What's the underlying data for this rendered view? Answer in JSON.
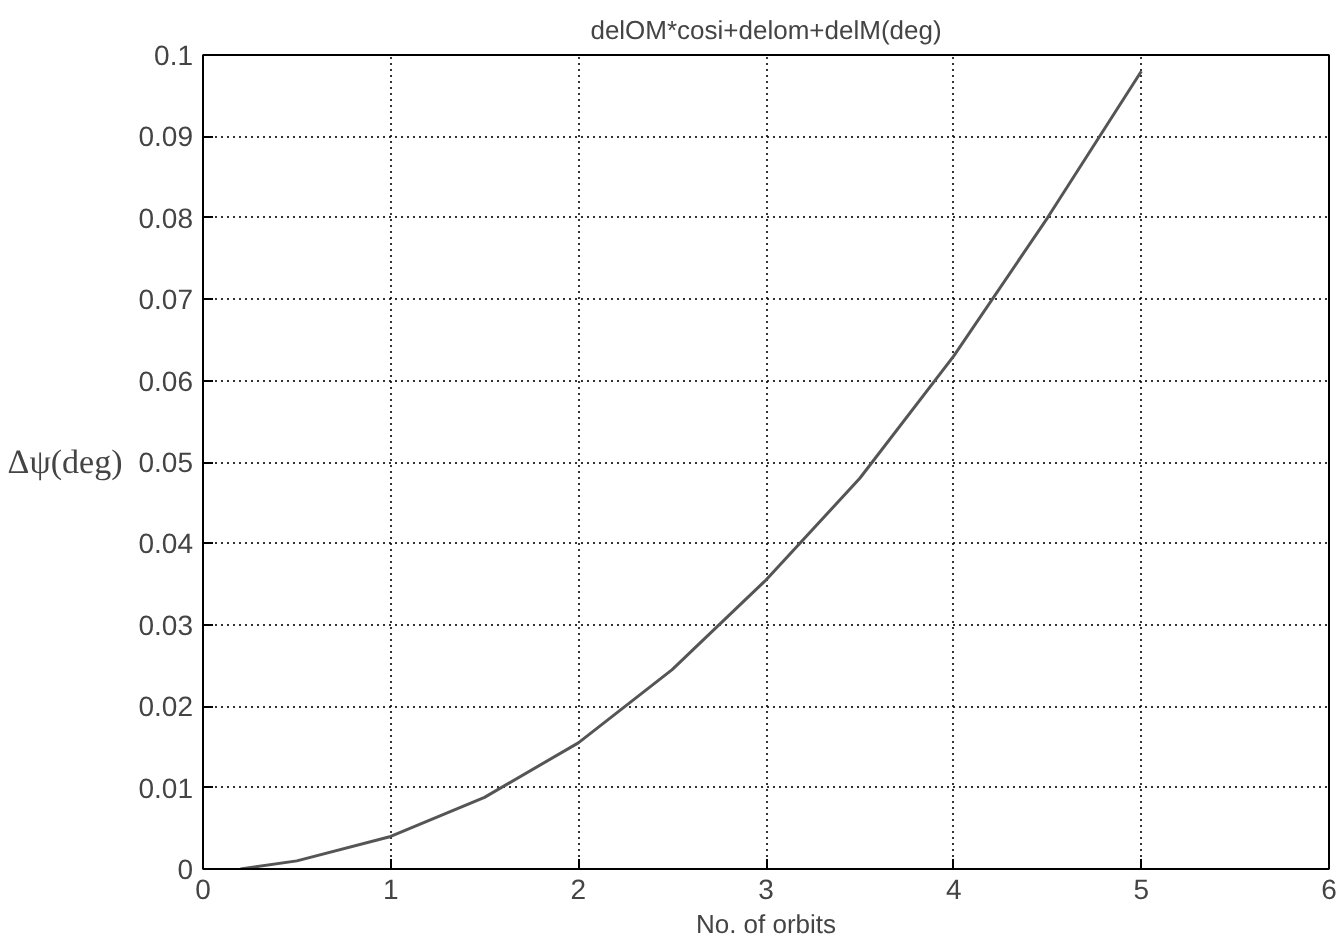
{
  "chart_data": {
    "type": "line",
    "title": "delOM*cosi+delom+delM(deg)",
    "xlabel": "No. of orbits",
    "ylabel": "Δψ(deg)",
    "x": [
      0.2,
      0.5,
      1,
      1.5,
      2,
      2.5,
      3,
      3.5,
      4,
      4.5,
      5
    ],
    "series": [
      {
        "color": "#555555",
        "values": [
          0,
          0.001,
          0.004,
          0.0088,
          0.0155,
          0.0245,
          0.0355,
          0.048,
          0.063,
          0.08,
          0.098
        ]
      }
    ],
    "xlim": [
      0,
      6
    ],
    "xticks": [
      0,
      1,
      2,
      3,
      4,
      5,
      6
    ],
    "ylim": [
      0,
      0.1
    ],
    "yticks": [
      0,
      0.01,
      0.02,
      0.03,
      0.04,
      0.05,
      0.06,
      0.07,
      0.08,
      0.09,
      0.1
    ],
    "grid": true,
    "line_style": "solid"
  }
}
